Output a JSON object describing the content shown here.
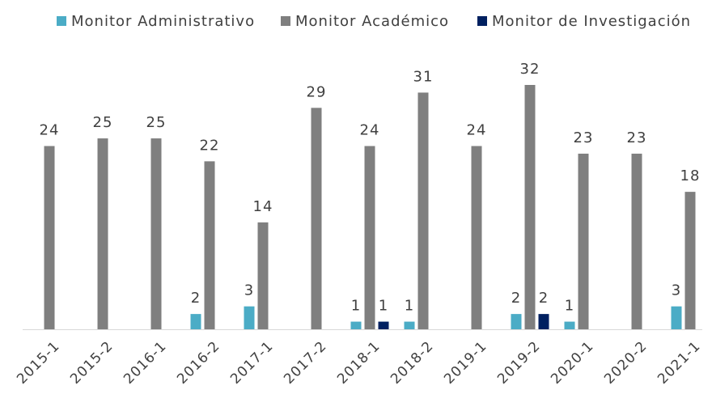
{
  "chart_data": {
    "type": "bar",
    "categories": [
      "2015-1",
      "2015-2",
      "2016-1",
      "2016-2",
      "2017-1",
      "2017-2",
      "2018-1",
      "2018-2",
      "2019-1",
      "2019-2",
      "2020-1",
      "2020-2",
      "2021-1"
    ],
    "series": [
      {
        "name": "Monitor Administrativo",
        "color": "#4bacc6",
        "values": [
          null,
          null,
          null,
          2,
          3,
          null,
          1,
          1,
          null,
          2,
          1,
          null,
          3
        ]
      },
      {
        "name": "Monitor Académico",
        "color": "#7f7f7f",
        "values": [
          24,
          25,
          25,
          22,
          14,
          29,
          24,
          31,
          24,
          32,
          23,
          23,
          18
        ]
      },
      {
        "name": "Monitor de Investigación",
        "color": "#002060",
        "values": [
          null,
          null,
          null,
          null,
          null,
          null,
          1,
          null,
          null,
          2,
          null,
          null,
          null
        ]
      }
    ],
    "legend": "top"
  }
}
